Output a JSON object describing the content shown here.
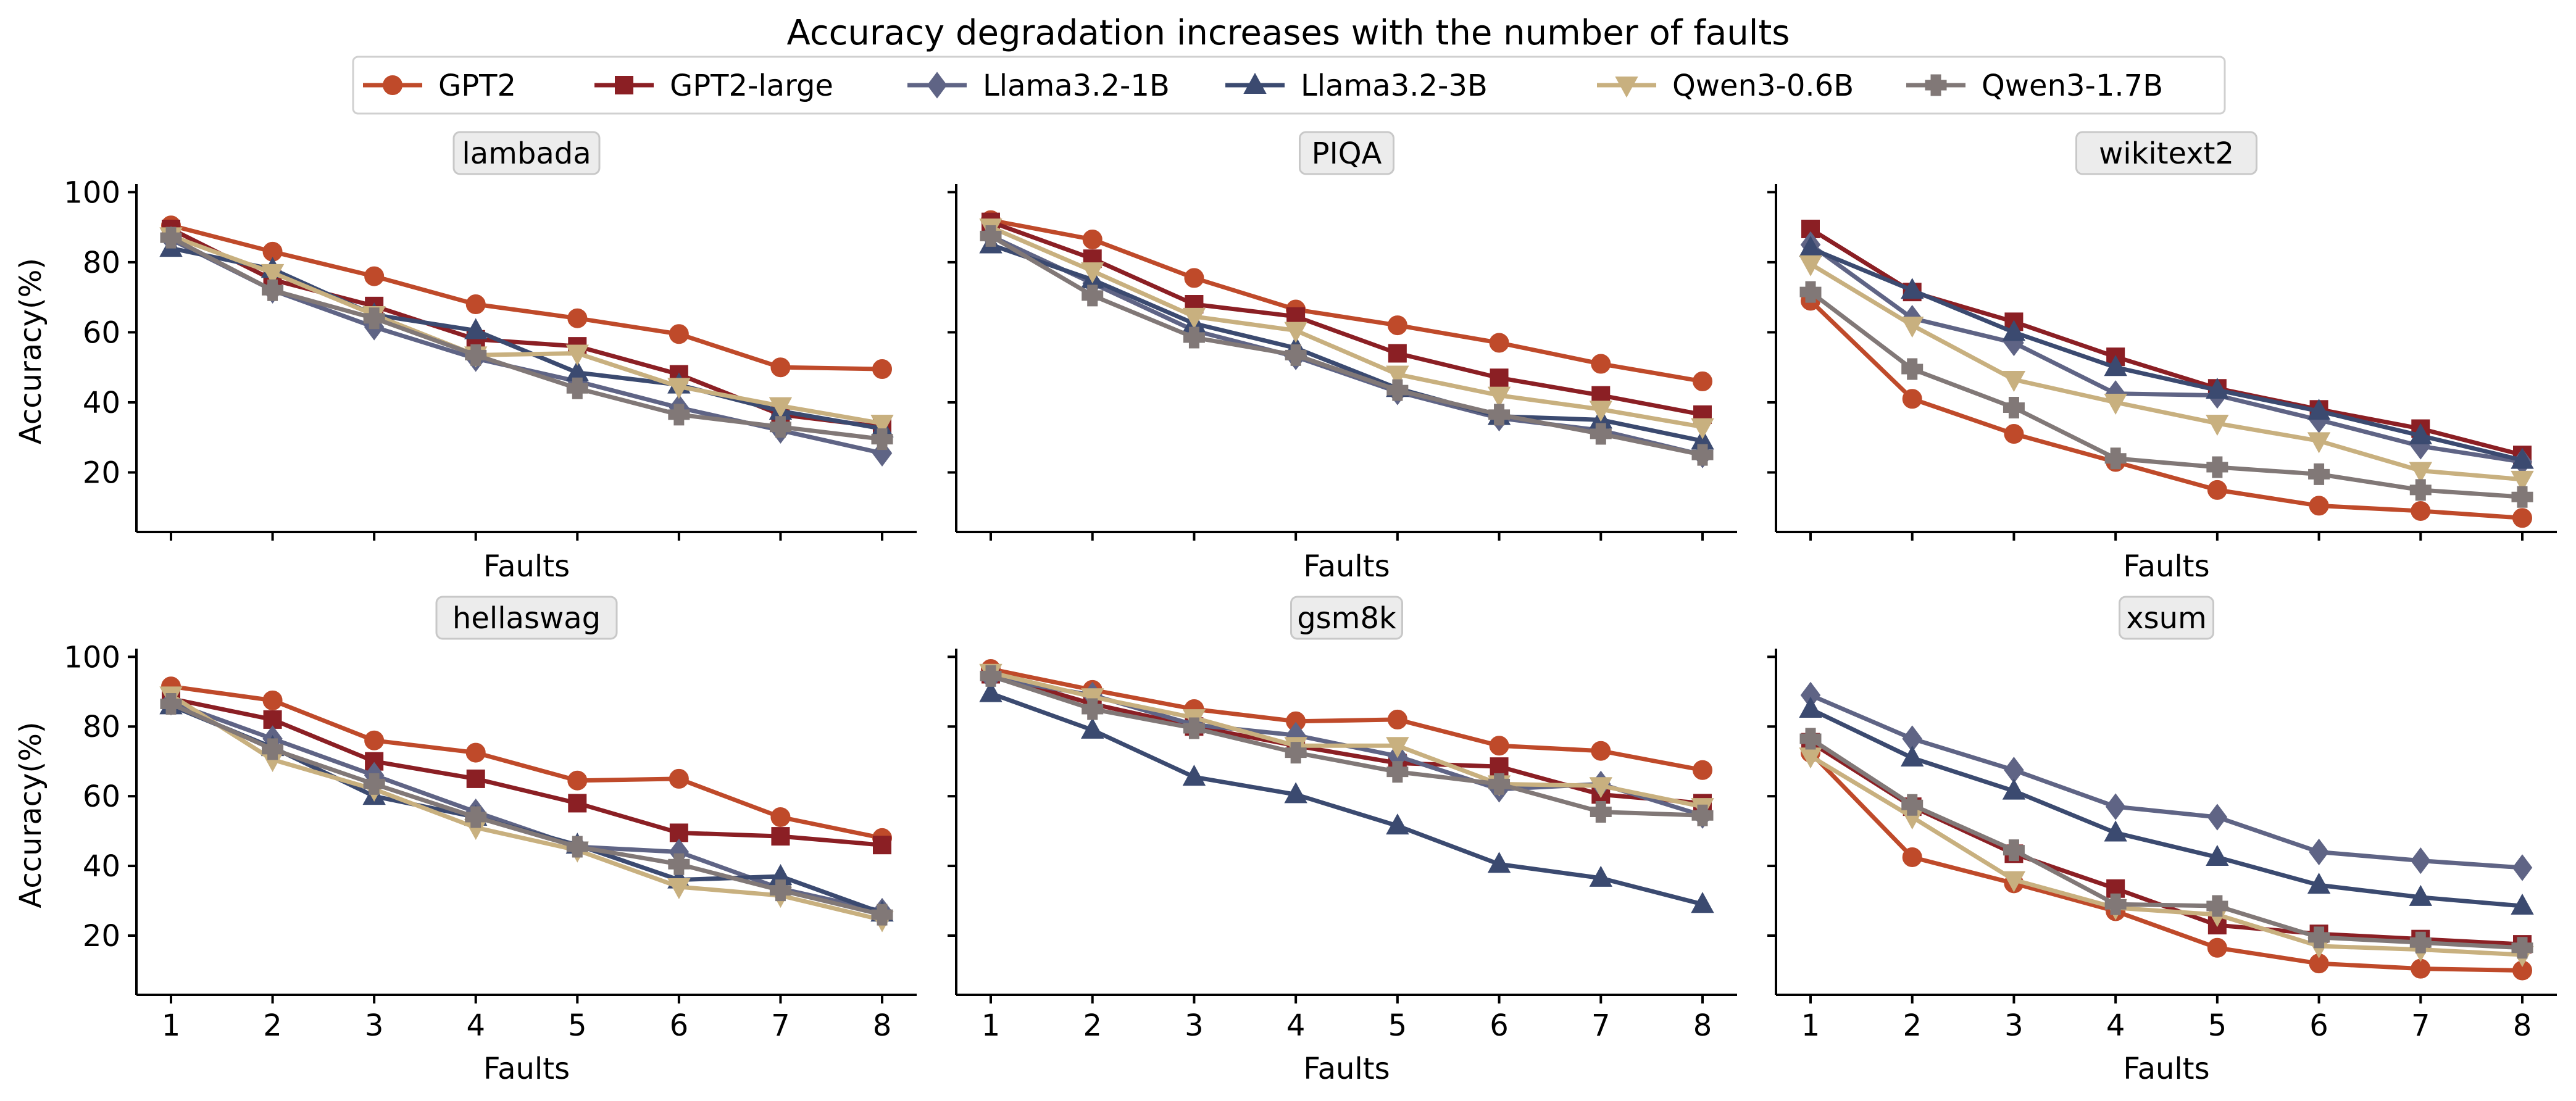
{
  "chart_data": {
    "type": "line",
    "title": "Accuracy degradation increases with the number of faults",
    "x": [
      1,
      2,
      3,
      4,
      5,
      6,
      7,
      8
    ],
    "xlabel": "Faults",
    "ylabel": "Accuracy(%)",
    "ylim": [
      3,
      102
    ],
    "yticks": [
      20,
      40,
      60,
      80,
      100
    ],
    "grid": false,
    "legend_placement": "top-center",
    "series_styles": [
      {
        "name": "GPT2",
        "color": "#bf4a2a",
        "marker": "circle"
      },
      {
        "name": "GPT2-large",
        "color": "#8b1f24",
        "marker": "square"
      },
      {
        "name": "Llama3.2-1B",
        "color": "#5f6485",
        "marker": "diamond"
      },
      {
        "name": "Llama3.2-3B",
        "color": "#3b4a70",
        "marker": "triangle-up"
      },
      {
        "name": "Qwen3-0.6B",
        "color": "#c8b07f",
        "marker": "triangle-down"
      },
      {
        "name": "Qwen3-1.7B",
        "color": "#817877",
        "marker": "plus"
      }
    ],
    "panels": [
      {
        "title": "lambada",
        "series": [
          {
            "name": "GPT2",
            "values": [
              90.5,
              83,
              76,
              68,
              64,
              59.5,
              50,
              49.5
            ]
          },
          {
            "name": "GPT2-large",
            "values": [
              89.5,
              75,
              67.5,
              58,
              56,
              48,
              36.5,
              33
            ]
          },
          {
            "name": "Llama3.2-1B",
            "values": [
              86.5,
              72,
              61.5,
              52.5,
              46,
              38.5,
              32,
              25.5
            ]
          },
          {
            "name": "Llama3.2-3B",
            "values": [
              84,
              78,
              65,
              60.5,
              48.5,
              45,
              37.5,
              32.5
            ]
          },
          {
            "name": "Qwen3-0.6B",
            "values": [
              87.5,
              77,
              65,
              53.5,
              54,
              44.5,
              39,
              34
            ]
          },
          {
            "name": "Qwen3-1.7B",
            "values": [
              87,
              72,
              64,
              53.5,
              44,
              36.5,
              33,
              29.5
            ]
          }
        ]
      },
      {
        "title": "PIQA",
        "series": [
          {
            "name": "GPT2",
            "values": [
              92,
              86.5,
              75.5,
              66.5,
              62,
              57,
              51,
              46
            ]
          },
          {
            "name": "GPT2-large",
            "values": [
              91.5,
              81,
              68,
              64.5,
              54,
              47,
              42,
              36.5
            ]
          },
          {
            "name": "Llama3.2-1B",
            "values": [
              87.5,
              74,
              60.5,
              53,
              43,
              35.5,
              32,
              25
            ]
          },
          {
            "name": "Llama3.2-3B",
            "values": [
              85,
              75,
              62.5,
              55.5,
              44,
              36,
              35,
              29
            ]
          },
          {
            "name": "Qwen3-0.6B",
            "values": [
              90,
              77.5,
              64.5,
              60.5,
              48,
              42,
              38,
              33
            ]
          },
          {
            "name": "Qwen3-1.7B",
            "values": [
              87.5,
              70.5,
              58.5,
              53.5,
              43.5,
              36.5,
              31,
              25
            ]
          }
        ]
      },
      {
        "title": "wikitext2",
        "series": [
          {
            "name": "GPT2",
            "values": [
              69,
              41,
              31,
              23,
              15,
              10.5,
              9,
              7
            ]
          },
          {
            "name": "GPT2-large",
            "values": [
              89.5,
              71.5,
              63,
              53,
              44,
              38,
              32.5,
              25
            ]
          },
          {
            "name": "Llama3.2-1B",
            "values": [
              85,
              64,
              57,
              42.5,
              42,
              35,
              27.5,
              23
            ]
          },
          {
            "name": "Llama3.2-3B",
            "values": [
              84,
              72,
              60,
              50,
              43.5,
              37.5,
              30.5,
              23.5
            ]
          },
          {
            "name": "Qwen3-0.6B",
            "values": [
              79.5,
              62,
              46.5,
              40,
              34,
              29,
              20.5,
              18
            ]
          },
          {
            "name": "Qwen3-1.7B",
            "values": [
              71.5,
              49.5,
              38.5,
              24,
              21.5,
              19.5,
              15,
              13
            ]
          }
        ]
      },
      {
        "title": "hellaswag",
        "series": [
          {
            "name": "GPT2",
            "values": [
              91.5,
              87.5,
              76,
              72.5,
              64.5,
              65,
              54,
              48
            ]
          },
          {
            "name": "GPT2-large",
            "values": [
              88,
              82,
              70,
              65,
              58,
              49.5,
              48.5,
              46
            ]
          },
          {
            "name": "Llama3.2-1B",
            "values": [
              87,
              76.5,
              66,
              55.5,
              45.5,
              44,
              33.5,
              27
            ]
          },
          {
            "name": "Llama3.2-3B",
            "values": [
              86,
              74,
              60,
              54,
              46,
              36,
              37,
              26.5
            ]
          },
          {
            "name": "Qwen3-0.6B",
            "values": [
              89,
              70.5,
              62,
              51,
              44.5,
              34,
              31.5,
              24.5
            ]
          },
          {
            "name": "Qwen3-1.7B",
            "values": [
              86.5,
              73.5,
              63.5,
              54,
              45.5,
              40.5,
              33,
              26
            ]
          }
        ]
      },
      {
        "title": "gsm8k",
        "series": [
          {
            "name": "GPT2",
            "values": [
              96.5,
              90.5,
              85,
              81.5,
              82,
              74.5,
              73,
              67.5
            ]
          },
          {
            "name": "GPT2-large",
            "values": [
              95,
              86.5,
              80,
              74.5,
              69.5,
              68.5,
              60.5,
              58
            ]
          },
          {
            "name": "Llama3.2-1B",
            "values": [
              94,
              89,
              80.5,
              77.5,
              71.5,
              62,
              63.5,
              54.5
            ]
          },
          {
            "name": "Llama3.2-3B",
            "values": [
              89.5,
              79,
              65.5,
              60.5,
              51.5,
              40.5,
              36.5,
              29
            ]
          },
          {
            "name": "Qwen3-0.6B",
            "values": [
              95.5,
              88.5,
              82.5,
              74.5,
              74.5,
              63.5,
              63,
              57
            ]
          },
          {
            "name": "Qwen3-1.7B",
            "values": [
              94.5,
              85,
              79.5,
              72.5,
              67,
              63.5,
              55.5,
              54.5
            ]
          }
        ]
      },
      {
        "title": "xsum",
        "series": [
          {
            "name": "GPT2",
            "values": [
              72.5,
              42.5,
              35,
              27,
              16.5,
              12,
              10.5,
              10
            ]
          },
          {
            "name": "GPT2-large",
            "values": [
              75.5,
              57,
              43.5,
              33.5,
              23,
              20.5,
              19,
              17.5
            ]
          },
          {
            "name": "Llama3.2-1B",
            "values": [
              89,
              76.5,
              67.5,
              57,
              54,
              44,
              41.5,
              39.5
            ]
          },
          {
            "name": "Llama3.2-3B",
            "values": [
              85,
              71,
              61.5,
              49.5,
              42.5,
              34.5,
              31,
              28.5
            ]
          },
          {
            "name": "Qwen3-0.6B",
            "values": [
              71.5,
              54,
              36,
              28,
              26,
              17,
              16,
              14.5
            ]
          },
          {
            "name": "Qwen3-1.7B",
            "values": [
              76.5,
              57.5,
              44.5,
              29,
              28.5,
              19.5,
              18,
              16.5
            ]
          }
        ]
      }
    ]
  }
}
